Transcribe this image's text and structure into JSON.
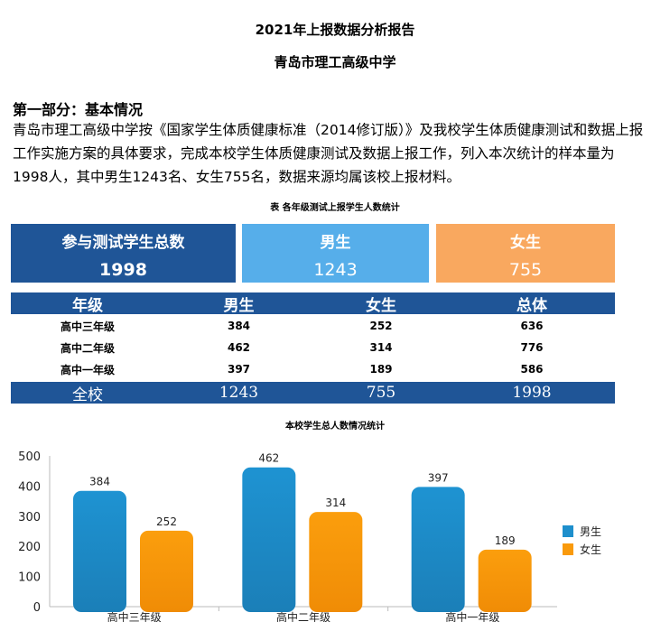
{
  "title": "2021年上报数据分析报告",
  "school": "青岛市理工高级中学",
  "section_title": "第一部分：基本情况",
  "paragraph": "青岛市理工高级中学按《国家学生体质健康标准（2014修订版）》及我校学生体质健康测试和数据上报工作实施方案的具体要求，完成本校学生体质健康测试及数据上报工作，列入本次统计的样本量为1998人，其中男生1243名、女生755名，数据来源均属该校上报材料。",
  "table_caption": "表 各年级测试上报学生人数统计",
  "cards": [
    {
      "label": "参与测试学生总数",
      "value": "1998",
      "color": "#1f5597"
    },
    {
      "label": "男生",
      "value": "1243",
      "color": "#56aeea"
    },
    {
      "label": "女生",
      "value": "755",
      "color": "#f9a85f"
    }
  ],
  "table": {
    "headers": [
      "年级",
      "男生",
      "女生",
      "总体"
    ],
    "rows": [
      [
        "高中三年级",
        "384",
        "252",
        "636"
      ],
      [
        "高中二年级",
        "462",
        "314",
        "776"
      ],
      [
        "高中一年级",
        "397",
        "189",
        "586"
      ]
    ],
    "footer": [
      "全校",
      "1243",
      "755",
      "1998"
    ]
  },
  "chart_data": {
    "type": "bar",
    "title": "本校学生总人数情况统计",
    "categories": [
      "高中三年级",
      "高中二年级",
      "高中一年级"
    ],
    "series": [
      {
        "name": "男生",
        "values": [
          384,
          462,
          397
        ],
        "color": "#1e8fcc"
      },
      {
        "name": "女生",
        "values": [
          252,
          314,
          189
        ],
        "color": "#f99a0c"
      }
    ],
    "ylim": [
      0,
      500
    ],
    "yticks": [
      "0",
      "100",
      "200",
      "300",
      "400",
      "500"
    ],
    "legend": "right",
    "grid": false
  }
}
